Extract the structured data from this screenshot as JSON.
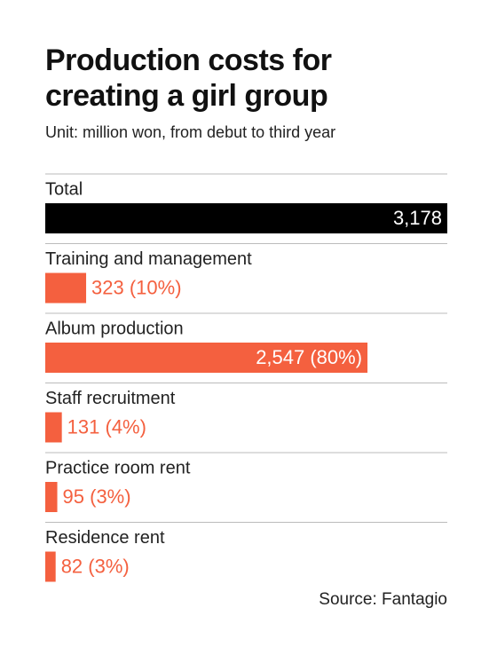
{
  "chart_data": {
    "type": "bar",
    "orientation": "horizontal",
    "title": "Production costs for creating a girl group",
    "subtitle": "Unit: million won, from debut to third year",
    "categories": [
      "Total",
      "Training and management",
      "Album production",
      "Staff recruitment",
      "Practice room rent",
      "Residence rent"
    ],
    "values": [
      3178,
      323,
      2547,
      131,
      95,
      82
    ],
    "value_labels": [
      "3,178",
      "323 (10%)",
      "2,547 (80%)",
      "131 (4%)",
      "95 (3%)",
      "82 (3%)"
    ],
    "colors": [
      "#000000",
      "#f4603f",
      "#f4603f",
      "#f4603f",
      "#f4603f",
      "#f4603f"
    ],
    "source": "Source: Fantagio"
  }
}
